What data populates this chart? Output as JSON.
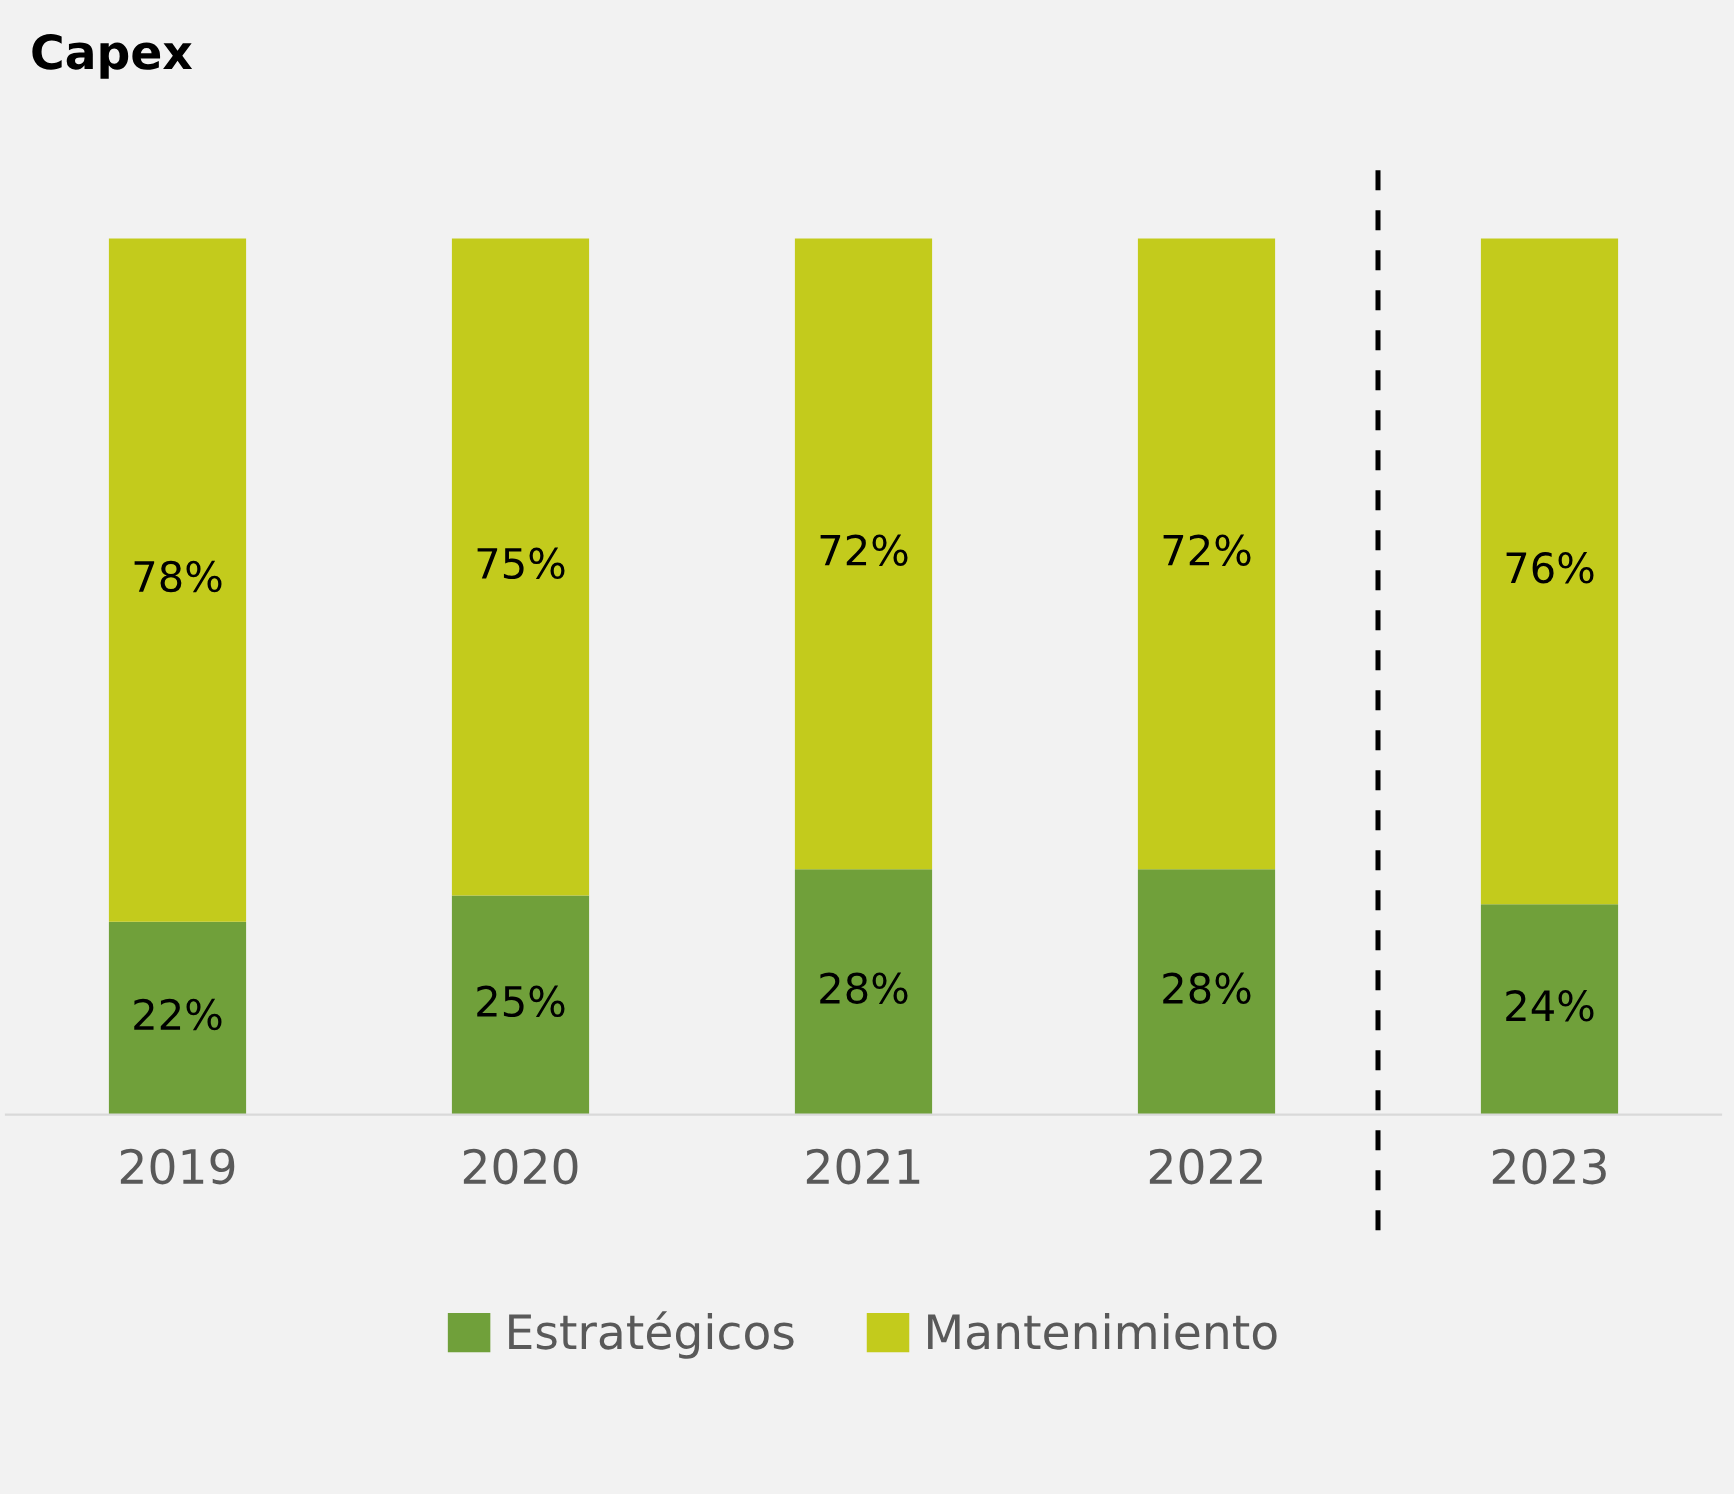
{
  "chart_data": {
    "type": "bar",
    "title": "Capex",
    "categories": [
      "2019",
      "2020",
      "2021",
      "2022",
      "2023"
    ],
    "stacked": true,
    "series": [
      {
        "name": "Estratégicos",
        "color": "#70a03a",
        "values": [
          22,
          25,
          28,
          28,
          24
        ],
        "value_labels": [
          "22%",
          "25%",
          "28%",
          "28%",
          "24%"
        ]
      },
      {
        "name": "Mantenimiento",
        "color": "#c3cb1c",
        "values": [
          78,
          75,
          72,
          72,
          76
        ],
        "value_labels": [
          "78%",
          "75%",
          "72%",
          "72%",
          "76%"
        ]
      }
    ],
    "legend": "bottom",
    "grid": false
  }
}
